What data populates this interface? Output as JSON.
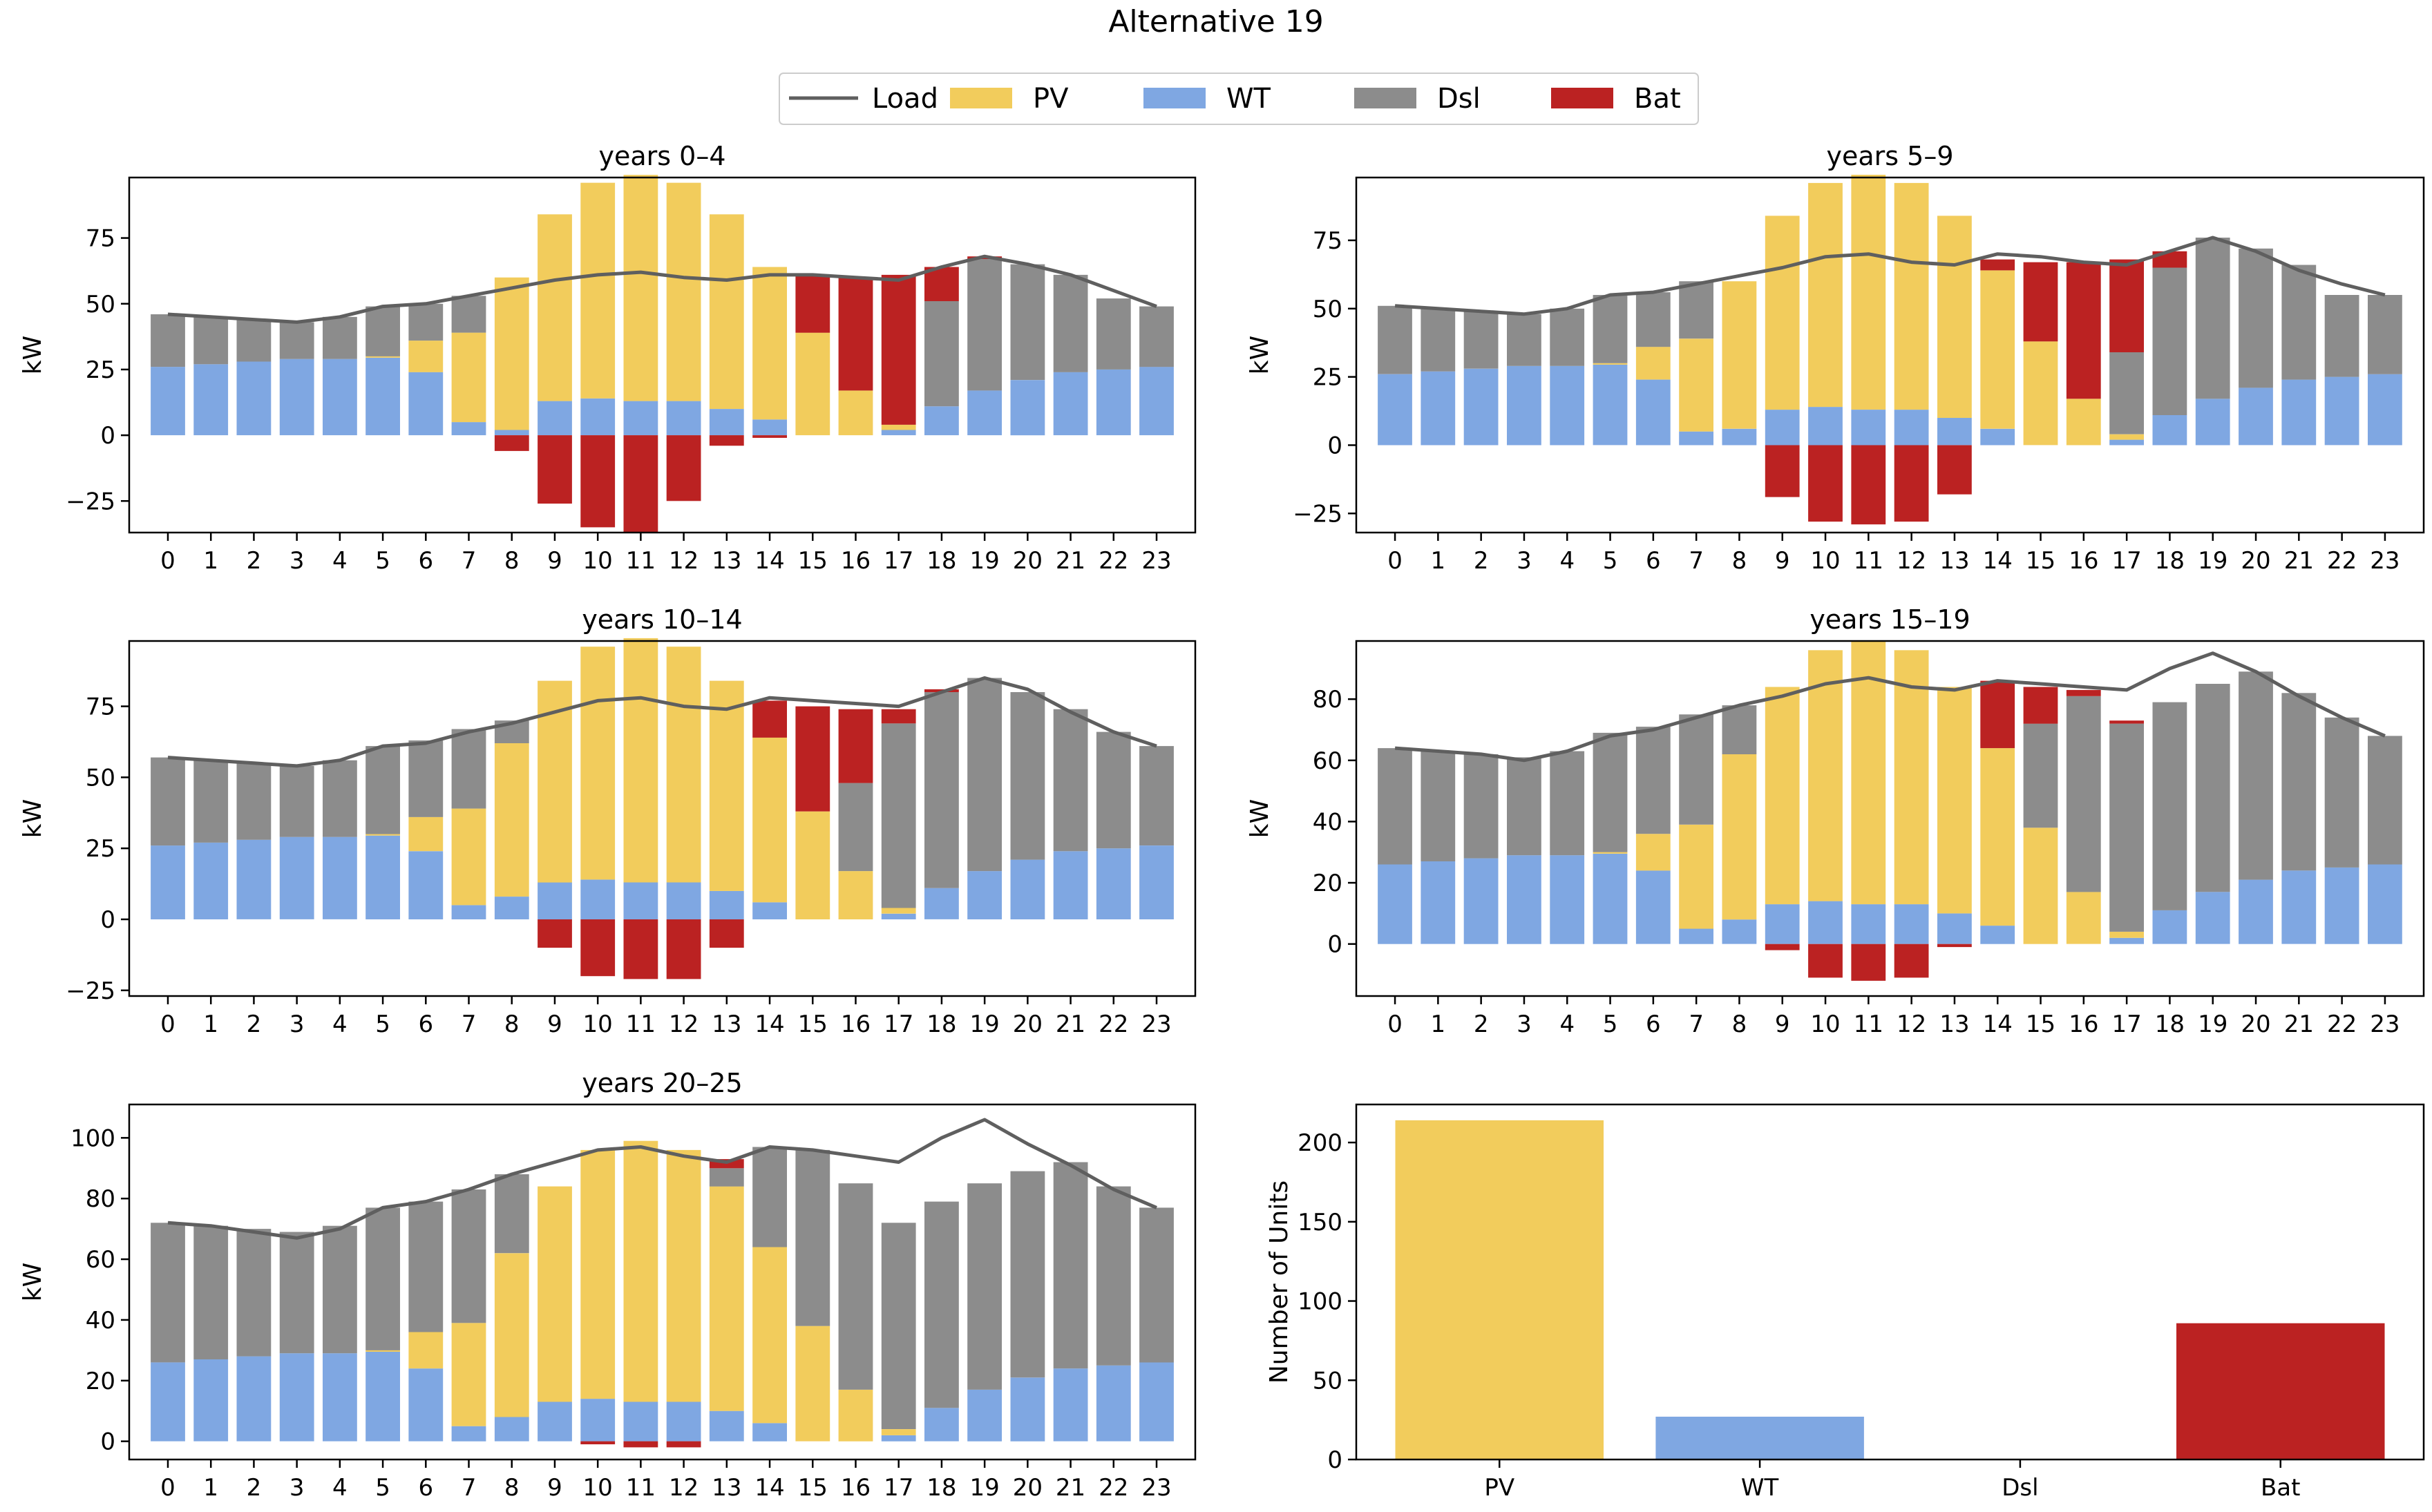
{
  "figure_title": "Alternative 19",
  "colors": {
    "Load": "#5f5f5f",
    "PV": "#f2cc5c",
    "WT": "#7fa7e2",
    "Dsl": "#8c8c8c",
    "Bat": "#bb2222"
  },
  "legend": [
    "Load",
    "PV",
    "WT",
    "Dsl",
    "Bat"
  ],
  "chart_data": [
    {
      "type": "bar",
      "title": "years 0–4",
      "ylabel": "kW",
      "ylim": [
        -37,
        98
      ],
      "yticks": [
        -25,
        0,
        25,
        50,
        75
      ],
      "categories": [
        "0",
        "1",
        "2",
        "3",
        "4",
        "5",
        "6",
        "7",
        "8",
        "9",
        "10",
        "11",
        "12",
        "13",
        "14",
        "15",
        "16",
        "17",
        "18",
        "19",
        "20",
        "21",
        "22",
        "23"
      ],
      "series": [
        {
          "name": "WT",
          "values": [
            26,
            27,
            28,
            29,
            29,
            29.5,
            24,
            5,
            2,
            13,
            14,
            13,
            13,
            10,
            6,
            0,
            0,
            2,
            11,
            17,
            21,
            24,
            25,
            26
          ]
        },
        {
          "name": "PV",
          "values": [
            0,
            0,
            0,
            0,
            0,
            0.5,
            12,
            34,
            58,
            71,
            82,
            86,
            83,
            74,
            58,
            39,
            17,
            2,
            0,
            0,
            0,
            0,
            0,
            0
          ]
        },
        {
          "name": "Dsl",
          "values": [
            20,
            18,
            16,
            14,
            16,
            19,
            14,
            14,
            0,
            0,
            0,
            0,
            0,
            0,
            0,
            0,
            0,
            0,
            40,
            50,
            44,
            37,
            27,
            23
          ]
        },
        {
          "name": "Bat",
          "values": [
            0,
            0,
            0,
            0,
            0,
            0,
            0,
            0,
            -6,
            -26,
            -35,
            -37,
            -25,
            -4,
            -1,
            22,
            43,
            57,
            13,
            1,
            0,
            0,
            0,
            0
          ]
        },
        {
          "name": "Load",
          "values": [
            46,
            45,
            44,
            43,
            45,
            49,
            50,
            53,
            56,
            59,
            61,
            62,
            60,
            59,
            61,
            61,
            60,
            59,
            64,
            68,
            65,
            61,
            55,
            49
          ]
        }
      ]
    },
    {
      "type": "bar",
      "title": "years 5–9",
      "ylabel": "kW",
      "ylim": [
        -32,
        98
      ],
      "yticks": [
        -25,
        0,
        25,
        50,
        75
      ],
      "categories": [
        "0",
        "1",
        "2",
        "3",
        "4",
        "5",
        "6",
        "7",
        "8",
        "9",
        "10",
        "11",
        "12",
        "13",
        "14",
        "15",
        "16",
        "17",
        "18",
        "19",
        "20",
        "21",
        "22",
        "23"
      ],
      "series": [
        {
          "name": "WT",
          "values": [
            26,
            27,
            28,
            29,
            29,
            29.5,
            24,
            5,
            6,
            13,
            14,
            13,
            13,
            10,
            6,
            0,
            0,
            2,
            11,
            17,
            21,
            24,
            25,
            26
          ]
        },
        {
          "name": "PV",
          "values": [
            0,
            0,
            0,
            0,
            0,
            0.5,
            12,
            34,
            54,
            71,
            82,
            86,
            83,
            74,
            58,
            38,
            17,
            2,
            0,
            0,
            0,
            0,
            0,
            0
          ]
        },
        {
          "name": "Dsl",
          "values": [
            25,
            23,
            21,
            19,
            21,
            25,
            20,
            21,
            0,
            0,
            0,
            0,
            0,
            0,
            0,
            0,
            0,
            30,
            54,
            59,
            51,
            42,
            30,
            29
          ]
        },
        {
          "name": "Bat",
          "values": [
            0,
            0,
            0,
            0,
            0,
            0,
            0,
            0,
            0,
            -19,
            -28,
            -29,
            -28,
            -18,
            4,
            29,
            50,
            34,
            6,
            0,
            0,
            0,
            0,
            0
          ]
        },
        {
          "name": "Load",
          "values": [
            51,
            50,
            49,
            48,
            50,
            55,
            56,
            59,
            62,
            65,
            69,
            70,
            67,
            66,
            70,
            69,
            67,
            66,
            71,
            76,
            71,
            64,
            59,
            55
          ]
        }
      ]
    },
    {
      "type": "bar",
      "title": "years 10–14",
      "ylabel": "kW",
      "ylim": [
        -27,
        98
      ],
      "yticks": [
        -25,
        0,
        25,
        50,
        75
      ],
      "categories": [
        "0",
        "1",
        "2",
        "3",
        "4",
        "5",
        "6",
        "7",
        "8",
        "9",
        "10",
        "11",
        "12",
        "13",
        "14",
        "15",
        "16",
        "17",
        "18",
        "19",
        "20",
        "21",
        "22",
        "23"
      ],
      "series": [
        {
          "name": "WT",
          "values": [
            26,
            27,
            28,
            29,
            29,
            29.5,
            24,
            5,
            8,
            13,
            14,
            13,
            13,
            10,
            6,
            0,
            0,
            2,
            11,
            17,
            21,
            24,
            25,
            26
          ]
        },
        {
          "name": "PV",
          "values": [
            0,
            0,
            0,
            0,
            0,
            0.5,
            12,
            34,
            54,
            71,
            82,
            86,
            83,
            74,
            58,
            38,
            17,
            2,
            0,
            0,
            0,
            0,
            0,
            0
          ]
        },
        {
          "name": "Dsl",
          "values": [
            31,
            29,
            27,
            25,
            27,
            31,
            27,
            28,
            8,
            0,
            0,
            0,
            0,
            0,
            0,
            0,
            31,
            65,
            69,
            68,
            59,
            50,
            41,
            35
          ]
        },
        {
          "name": "Bat",
          "values": [
            0,
            0,
            0,
            0,
            0,
            0,
            0,
            0,
            0,
            -10,
            -20,
            -21,
            -21,
            -10,
            13,
            37,
            26,
            5,
            1,
            0,
            0,
            0,
            0,
            0
          ]
        },
        {
          "name": "Load",
          "values": [
            57,
            56,
            55,
            54,
            56,
            61,
            62,
            66,
            69,
            73,
            77,
            78,
            75,
            74,
            78,
            77,
            76,
            75,
            80,
            85,
            81,
            73,
            66,
            61
          ]
        }
      ]
    },
    {
      "type": "bar",
      "title": "years 15–19",
      "ylabel": "kW",
      "ylim": [
        -17,
        99
      ],
      "yticks": [
        0,
        20,
        40,
        60,
        80
      ],
      "categories": [
        "0",
        "1",
        "2",
        "3",
        "4",
        "5",
        "6",
        "7",
        "8",
        "9",
        "10",
        "11",
        "12",
        "13",
        "14",
        "15",
        "16",
        "17",
        "18",
        "19",
        "20",
        "21",
        "22",
        "23"
      ],
      "series": [
        {
          "name": "WT",
          "values": [
            26,
            27,
            28,
            29,
            29,
            29.5,
            24,
            5,
            8,
            13,
            14,
            13,
            13,
            10,
            6,
            0,
            0,
            2,
            11,
            17,
            21,
            24,
            25,
            26
          ]
        },
        {
          "name": "PV",
          "values": [
            0,
            0,
            0,
            0,
            0,
            0.5,
            12,
            34,
            54,
            71,
            82,
            86,
            83,
            74,
            58,
            38,
            17,
            2,
            0,
            0,
            0,
            0,
            0,
            0
          ]
        },
        {
          "name": "Dsl",
          "values": [
            38,
            36,
            34,
            32,
            34,
            39,
            35,
            36,
            16,
            0,
            0,
            0,
            0,
            0,
            0,
            34,
            64,
            68,
            68,
            68,
            68,
            58,
            49,
            42
          ]
        },
        {
          "name": "Bat",
          "values": [
            0,
            0,
            0,
            0,
            0,
            0,
            0,
            0,
            0,
            -2,
            -11,
            -12,
            -11,
            -1,
            22,
            12,
            2,
            1,
            0,
            0,
            0,
            0,
            0,
            0
          ]
        },
        {
          "name": "Load",
          "values": [
            64,
            63,
            62,
            60,
            63,
            68,
            70,
            74,
            78,
            81,
            85,
            87,
            84,
            83,
            86,
            85,
            84,
            83,
            90,
            95,
            89,
            81,
            74,
            68
          ]
        }
      ]
    },
    {
      "type": "bar",
      "title": "years 20–25",
      "ylabel": "kW",
      "ylim": [
        -6,
        111
      ],
      "yticks": [
        0,
        20,
        40,
        60,
        80,
        100
      ],
      "categories": [
        "0",
        "1",
        "2",
        "3",
        "4",
        "5",
        "6",
        "7",
        "8",
        "9",
        "10",
        "11",
        "12",
        "13",
        "14",
        "15",
        "16",
        "17",
        "18",
        "19",
        "20",
        "21",
        "22",
        "23"
      ],
      "series": [
        {
          "name": "WT",
          "values": [
            26,
            27,
            28,
            29,
            29,
            29.5,
            24,
            5,
            8,
            13,
            14,
            13,
            13,
            10,
            6,
            0,
            0,
            2,
            11,
            17,
            21,
            24,
            25,
            26
          ]
        },
        {
          "name": "PV",
          "values": [
            0,
            0,
            0,
            0,
            0,
            0.5,
            12,
            34,
            54,
            71,
            82,
            86,
            83,
            74,
            58,
            38,
            17,
            2,
            0,
            0,
            0,
            0,
            0,
            0
          ]
        },
        {
          "name": "Dsl",
          "values": [
            46,
            44,
            42,
            40,
            42,
            47,
            43,
            44,
            26,
            0,
            0,
            0,
            0,
            6,
            33,
            58,
            68,
            68,
            68,
            68,
            68,
            68,
            59,
            51
          ]
        },
        {
          "name": "Bat",
          "values": [
            0,
            0,
            0,
            0,
            0,
            0,
            0,
            0,
            0,
            0,
            -1,
            -2,
            -2,
            3,
            0,
            0,
            0,
            0,
            0,
            0,
            0,
            0,
            0,
            0
          ]
        },
        {
          "name": "Load",
          "values": [
            72,
            71,
            69,
            67,
            70,
            77,
            79,
            83,
            88,
            92,
            96,
            97,
            94,
            92,
            97,
            96,
            94,
            92,
            100,
            106,
            98,
            91,
            83,
            77
          ]
        }
      ]
    },
    {
      "type": "bar",
      "title": "",
      "ylabel": "Number of Units",
      "ylim": [
        0,
        224
      ],
      "yticks": [
        0,
        50,
        100,
        150,
        200
      ],
      "categories": [
        "PV",
        "WT",
        "Dsl",
        "Bat"
      ],
      "values": [
        214,
        27,
        0,
        86
      ]
    }
  ]
}
